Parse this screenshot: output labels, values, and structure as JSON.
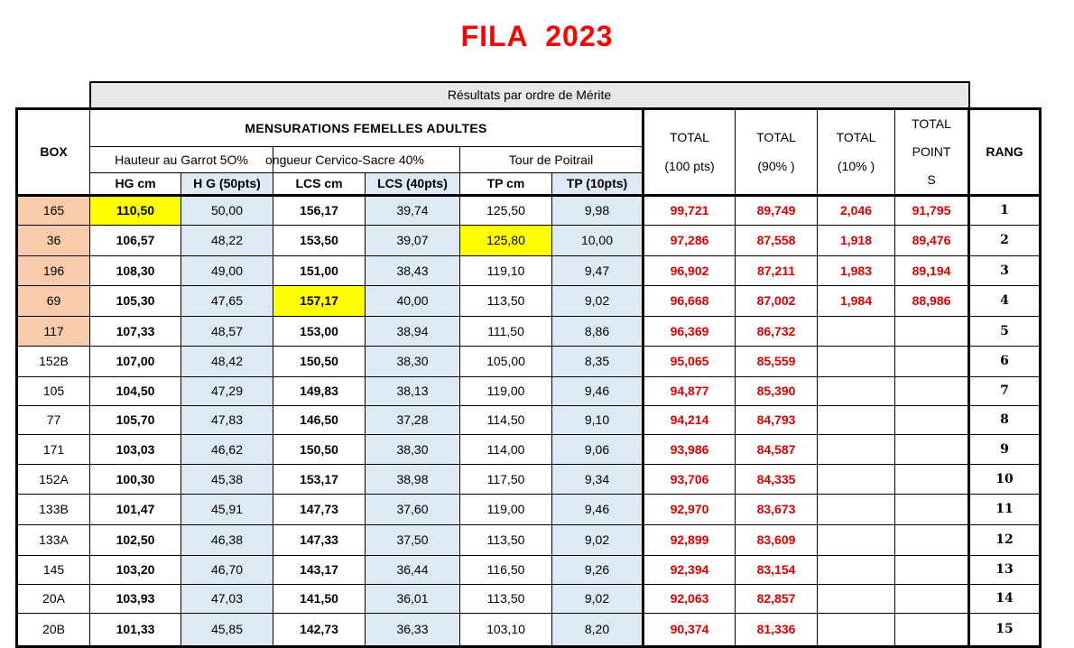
{
  "title": "FILA  2023",
  "banner": "Résultats par ordre de Mérite",
  "header": {
    "box": "BOX",
    "main": "MENSURATIONS FEMELLES ADULTES",
    "group_hg": "Hauteur au Garrot 5O%",
    "group_lcs": "ongueur Cervico-Sacre 40%",
    "group_tp": "Tour de Poitrail",
    "col_hg_cm": "HG cm",
    "col_hg_pts": "H G (50pts)",
    "col_lcs_cm": "LCS cm",
    "col_lcs_pts": "LCS (40pts)",
    "col_tp_cm": "TP cm",
    "col_tp_pts": "TP (10pts)",
    "total100_a": "TOTAL",
    "total100_b": "(100 pts)",
    "total90_a": "TOTAL",
    "total90_b": "(90% )",
    "total10_a": "TOTAL",
    "total10_b": "(10% )",
    "totalpts_a": "TOTAL",
    "totalpts_b": "POINT",
    "totalpts_c": "S",
    "rang": "RANG"
  },
  "rows": [
    {
      "box": "165",
      "hg": "110,50",
      "hgp": "50,00",
      "lcs": "156,17",
      "lcsp": "39,74",
      "tp": "125,50",
      "tpp": "9,98",
      "t100": "99,721",
      "t90": "89,749",
      "t10": "2,046",
      "tpts": "91,795",
      "rang": "1"
    },
    {
      "box": "36",
      "hg": "106,57",
      "hgp": "48,22",
      "lcs": "153,50",
      "lcsp": "39,07",
      "tp": "125,80",
      "tpp": "10,00",
      "t100": "97,286",
      "t90": "87,558",
      "t10": "1,918",
      "tpts": "89,476",
      "rang": "2"
    },
    {
      "box": "196",
      "hg": "108,30",
      "hgp": "49,00",
      "lcs": "151,00",
      "lcsp": "38,43",
      "tp": "119,10",
      "tpp": "9,47",
      "t100": "96,902",
      "t90": "87,211",
      "t10": "1,983",
      "tpts": "89,194",
      "rang": "3"
    },
    {
      "box": "69",
      "hg": "105,30",
      "hgp": "47,65",
      "lcs": "157,17",
      "lcsp": "40,00",
      "tp": "113,50",
      "tpp": "9,02",
      "t100": "96,668",
      "t90": "87,002",
      "t10": "1,984",
      "tpts": "88,986",
      "rang": "4"
    },
    {
      "box": "117",
      "hg": "107,33",
      "hgp": "48,57",
      "lcs": "153,00",
      "lcsp": "38,94",
      "tp": "111,50",
      "tpp": "8,86",
      "t100": "96,369",
      "t90": "86,732",
      "t10": "",
      "tpts": "",
      "rang": "5"
    },
    {
      "box": "152B",
      "hg": "107,00",
      "hgp": "48,42",
      "lcs": "150,50",
      "lcsp": "38,30",
      "tp": "105,00",
      "tpp": "8,35",
      "t100": "95,065",
      "t90": "85,559",
      "t10": "",
      "tpts": "",
      "rang": "6"
    },
    {
      "box": "105",
      "hg": "104,50",
      "hgp": "47,29",
      "lcs": "149,83",
      "lcsp": "38,13",
      "tp": "119,00",
      "tpp": "9,46",
      "t100": "94,877",
      "t90": "85,390",
      "t10": "",
      "tpts": "",
      "rang": "7"
    },
    {
      "box": "77",
      "hg": "105,70",
      "hgp": "47,83",
      "lcs": "146,50",
      "lcsp": "37,28",
      "tp": "114,50",
      "tpp": "9,10",
      "t100": "94,214",
      "t90": "84,793",
      "t10": "",
      "tpts": "",
      "rang": "8"
    },
    {
      "box": "171",
      "hg": "103,03",
      "hgp": "46,62",
      "lcs": "150,50",
      "lcsp": "38,30",
      "tp": "114,00",
      "tpp": "9,06",
      "t100": "93,986",
      "t90": "84,587",
      "t10": "",
      "tpts": "",
      "rang": "9"
    },
    {
      "box": "152A",
      "hg": "100,30",
      "hgp": "45,38",
      "lcs": "153,17",
      "lcsp": "38,98",
      "tp": "117,50",
      "tpp": "9,34",
      "t100": "93,706",
      "t90": "84,335",
      "t10": "",
      "tpts": "",
      "rang": "10"
    },
    {
      "box": "133B",
      "hg": "101,47",
      "hgp": "45,91",
      "lcs": "147,73",
      "lcsp": "37,60",
      "tp": "119,00",
      "tpp": "9,46",
      "t100": "92,970",
      "t90": "83,673",
      "t10": "",
      "tpts": "",
      "rang": "11"
    },
    {
      "box": "133A",
      "hg": "102,50",
      "hgp": "46,38",
      "lcs": "147,33",
      "lcsp": "37,50",
      "tp": "113,50",
      "tpp": "9,02",
      "t100": "92,899",
      "t90": "83,609",
      "t10": "",
      "tpts": "",
      "rang": "12"
    },
    {
      "box": "145",
      "hg": "103,20",
      "hgp": "46,70",
      "lcs": "143,17",
      "lcsp": "36,44",
      "tp": "116,50",
      "tpp": "9,26",
      "t100": "92,394",
      "t90": "83,154",
      "t10": "",
      "tpts": "",
      "rang": "13"
    },
    {
      "box": "20A",
      "hg": "103,93",
      "hgp": "47,03",
      "lcs": "141,50",
      "lcsp": "36,01",
      "tp": "113,50",
      "tpp": "9,02",
      "t100": "92,063",
      "t90": "82,857",
      "t10": "",
      "tpts": "",
      "rang": "14"
    },
    {
      "box": "20B",
      "hg": "101,33",
      "hgp": "45,85",
      "lcs": "142,73",
      "lcsp": "36,33",
      "tp": "103,10",
      "tpp": "8,20",
      "t100": "90,374",
      "t90": "81,336",
      "t10": "",
      "tpts": "",
      "rang": "15"
    }
  ],
  "highlights": {
    "box_fill_rows": [
      0,
      1,
      2,
      3,
      4
    ],
    "box_fill_color": "#f8cbad",
    "yellow_cells": [
      [
        0,
        "hg"
      ],
      [
        1,
        "tp"
      ],
      [
        3,
        "lcs"
      ]
    ],
    "yellow_color": "#ffff00",
    "points_column_color": "#dde9f5",
    "totals_color": "#e00000",
    "title_color": "#ff0000",
    "banner_color": "#e8e8e8"
  }
}
